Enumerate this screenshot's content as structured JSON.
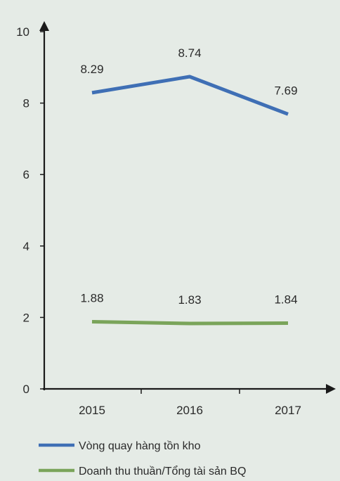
{
  "chart_data": {
    "type": "line",
    "categories": [
      "2015",
      "2016",
      "2017"
    ],
    "series": [
      {
        "name": "Vòng quay hàng tồn kho",
        "values": [
          8.29,
          8.74,
          7.69
        ],
        "labels": [
          "8.29",
          "8.74",
          "7.69"
        ],
        "color": "#3f6fb5"
      },
      {
        "name": "Doanh thu thuần/Tổng tài sản BQ",
        "values": [
          1.88,
          1.83,
          1.84
        ],
        "labels": [
          "1.88",
          "1.83",
          "1.84"
        ],
        "color": "#7aa45a"
      }
    ],
    "ylim": [
      0,
      10
    ],
    "yticks": [
      "0",
      "2",
      "4",
      "6",
      "8",
      "10"
    ],
    "grid": false,
    "legend_position": "bottom-left",
    "axis_color": "#1a1a1a",
    "background": "#e5ebe6"
  }
}
